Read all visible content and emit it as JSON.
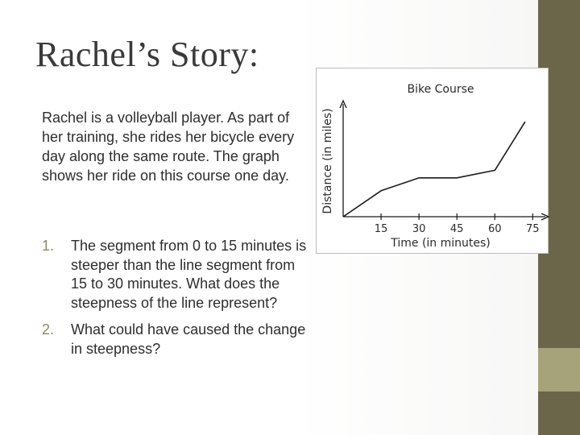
{
  "slide": {
    "title": "Rachel’s Story:",
    "intro": "Rachel is a volleyball player.  As part of her training, she rides her bicycle every day along the same route.  The graph shows her ride on this course one day.",
    "questions": [
      {
        "number": "1.",
        "text": "The segment from 0 to 15 minutes is steeper than the line segment from 15 to 30 minutes.  What does the steepness of the line represent?"
      },
      {
        "number": "2.",
        "text": "What could have caused the change in steepness?"
      }
    ]
  },
  "theme": {
    "sidebar_top": "#6b6549",
    "sidebar_mid": "#a6a37a",
    "sidebar_bottom": "#6b6549",
    "title_color": "#3a3a3a",
    "number_color": "#8c8a5f",
    "line_color": "#1a1a1a"
  },
  "chart_data": {
    "type": "line",
    "title": "Bike Course",
    "xlabel": "Time (in minutes)",
    "ylabel": "Distance (in miles)",
    "x_ticks": [
      15,
      30,
      45,
      60,
      75
    ],
    "xlim": [
      0,
      80
    ],
    "ylim": [
      0,
      10
    ],
    "y_tick_labels": false,
    "grid": false,
    "x": [
      0,
      15,
      30,
      45,
      60,
      72
    ],
    "y": [
      0,
      2.4,
      3.6,
      3.6,
      4.3,
      8.8
    ]
  }
}
